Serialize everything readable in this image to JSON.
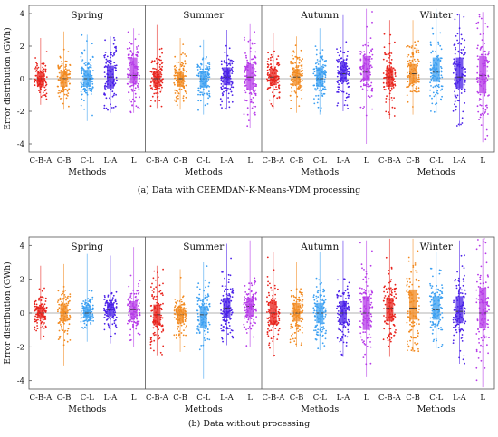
{
  "chart_data": [
    {
      "type": "box",
      "caption": "(a) Data with CEEMDAN-K-Means-VDM  processing",
      "ylabel": "Error distribution (GWh)",
      "xlabel": "Methods",
      "ylim": [
        -4.5,
        4.5
      ],
      "yticks": [
        4,
        2,
        0,
        -2,
        -4
      ],
      "categories": [
        "C-B-A",
        "C-B",
        "C-L",
        "L-A",
        "L"
      ],
      "panels": [
        {
          "name": "Spring",
          "boxes": [
            {
              "q1": -0.45,
              "median": 0.0,
              "q3": 0.4,
              "low": -1.6,
              "high": 2.5
            },
            {
              "q1": -0.5,
              "median": 0.0,
              "q3": 0.45,
              "low": -1.9,
              "high": 2.9
            },
            {
              "q1": -0.5,
              "median": 0.0,
              "q3": 0.55,
              "low": -2.6,
              "high": 2.7
            },
            {
              "q1": -0.6,
              "median": 0.1,
              "q3": 0.8,
              "low": -2.1,
              "high": 2.6
            },
            {
              "q1": -0.3,
              "median": 0.2,
              "q3": 1.3,
              "low": -2.1,
              "high": 3.1
            }
          ]
        },
        {
          "name": "Summer",
          "boxes": [
            {
              "q1": -0.5,
              "median": 0.0,
              "q3": 0.5,
              "low": -1.8,
              "high": 3.3
            },
            {
              "q1": -0.5,
              "median": 0.0,
              "q3": 0.4,
              "low": -1.9,
              "high": 2.5
            },
            {
              "q1": -0.55,
              "median": 0.0,
              "q3": 0.5,
              "low": -2.2,
              "high": 2.4
            },
            {
              "q1": -0.4,
              "median": 0.1,
              "q3": 0.7,
              "low": -1.9,
              "high": 3.0
            },
            {
              "q1": -0.7,
              "median": 0.1,
              "q3": 0.9,
              "low": -3.0,
              "high": 3.4
            }
          ]
        },
        {
          "name": "Autumn",
          "boxes": [
            {
              "q1": -0.4,
              "median": 0.1,
              "q3": 0.6,
              "low": -1.9,
              "high": 2.8
            },
            {
              "q1": -0.4,
              "median": 0.1,
              "q3": 0.6,
              "low": -2.1,
              "high": 2.6
            },
            {
              "q1": -0.5,
              "median": 0.0,
              "q3": 0.7,
              "low": -2.2,
              "high": 3.1
            },
            {
              "q1": -0.2,
              "median": 0.3,
              "q3": 1.0,
              "low": -2.0,
              "high": 3.9
            },
            {
              "q1": -0.1,
              "median": 0.4,
              "q3": 1.4,
              "low": -4.0,
              "high": 4.3
            }
          ]
        },
        {
          "name": "Winter",
          "boxes": [
            {
              "q1": -0.5,
              "median": 0.1,
              "q3": 0.7,
              "low": -2.5,
              "high": 3.6
            },
            {
              "q1": -0.3,
              "median": 0.3,
              "q3": 0.9,
              "low": -2.2,
              "high": 3.6
            },
            {
              "q1": -0.2,
              "median": 0.4,
              "q3": 1.3,
              "low": -2.1,
              "high": 4.3
            },
            {
              "q1": -0.6,
              "median": 0.1,
              "q3": 1.3,
              "low": -2.9,
              "high": 4.0
            },
            {
              "q1": -0.9,
              "median": 0.2,
              "q3": 1.4,
              "low": -3.9,
              "high": 4.1
            }
          ]
        }
      ]
    },
    {
      "type": "box",
      "caption": "(b) Data without  processing",
      "ylabel": "Error distribution (GWh)",
      "xlabel": "Methods",
      "ylim": [
        -4.5,
        4.5
      ],
      "yticks": [
        4,
        2,
        0,
        -2,
        -4
      ],
      "categories": [
        "C-B-A",
        "C-B",
        "C-L",
        "L-A",
        "L"
      ],
      "panels": [
        {
          "name": "Spring",
          "boxes": [
            {
              "q1": -0.3,
              "median": 0.0,
              "q3": 0.4,
              "low": -1.6,
              "high": 2.8
            },
            {
              "q1": -0.5,
              "median": 0.0,
              "q3": 0.5,
              "low": -3.1,
              "high": 2.9
            },
            {
              "q1": -0.3,
              "median": 0.0,
              "q3": 0.4,
              "low": -1.7,
              "high": 3.5
            },
            {
              "q1": -0.2,
              "median": 0.2,
              "q3": 0.6,
              "low": -1.8,
              "high": 3.4
            },
            {
              "q1": -0.3,
              "median": 0.2,
              "q3": 0.7,
              "low": -2.0,
              "high": 3.9
            }
          ]
        },
        {
          "name": "Summer",
          "boxes": [
            {
              "q1": -0.7,
              "median": -0.1,
              "q3": 0.5,
              "low": -2.5,
              "high": 2.8
            },
            {
              "q1": -0.6,
              "median": -0.1,
              "q3": 0.3,
              "low": -2.3,
              "high": 2.6
            },
            {
              "q1": -0.9,
              "median": -0.1,
              "q3": 0.4,
              "low": -3.9,
              "high": 3.0
            },
            {
              "q1": -0.3,
              "median": 0.3,
              "q3": 0.9,
              "low": -1.9,
              "high": 4.1
            },
            {
              "q1": -0.2,
              "median": 0.4,
              "q3": 0.9,
              "low": -2.0,
              "high": 4.3
            }
          ]
        },
        {
          "name": "Autumn",
          "boxes": [
            {
              "q1": -0.7,
              "median": 0.0,
              "q3": 0.7,
              "low": -2.6,
              "high": 3.6
            },
            {
              "q1": -0.5,
              "median": 0.0,
              "q3": 0.6,
              "low": -2.0,
              "high": 3.0
            },
            {
              "q1": -0.6,
              "median": 0.0,
              "q3": 0.6,
              "low": -2.2,
              "high": 3.6
            },
            {
              "q1": -0.6,
              "median": 0.0,
              "q3": 0.7,
              "low": -2.6,
              "high": 4.3
            },
            {
              "q1": -1.0,
              "median": 0.0,
              "q3": 1.0,
              "low": -3.8,
              "high": 4.3
            }
          ]
        },
        {
          "name": "Winter",
          "boxes": [
            {
              "q1": -0.5,
              "median": 0.3,
              "q3": 0.9,
              "low": -2.6,
              "high": 4.4
            },
            {
              "q1": -0.4,
              "median": 0.3,
              "q3": 1.4,
              "low": -2.3,
              "high": 4.4
            },
            {
              "q1": -0.4,
              "median": 0.2,
              "q3": 1.0,
              "low": -2.1,
              "high": 3.6
            },
            {
              "q1": -0.6,
              "median": 0.1,
              "q3": 1.0,
              "low": -3.0,
              "high": 4.3
            },
            {
              "q1": -0.9,
              "median": 0.0,
              "q3": 1.5,
              "low": -4.4,
              "high": 4.4
            }
          ]
        }
      ]
    }
  ],
  "colors": {
    "series": [
      "#e8231c",
      "#f28a20",
      "#3ca0f2",
      "#4a20e8",
      "#b63ae8"
    ],
    "frame": "#555555",
    "zero_line": "#9a9a9a",
    "text": "#111111"
  }
}
